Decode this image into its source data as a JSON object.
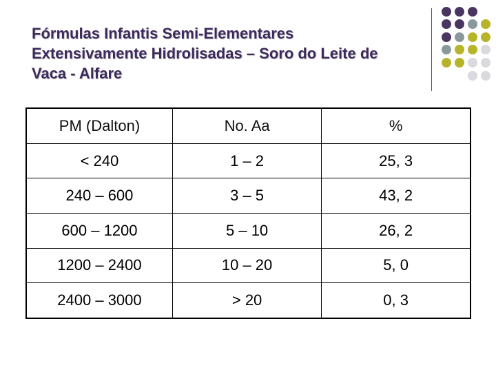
{
  "title": {
    "line1": "Fórmulas Infantis Semi-Elementares",
    "line2": "Extensivamente Hidrolisadas – Soro do Leite de",
    "line3": "Vaca - Alfare"
  },
  "table": {
    "headers": [
      "PM (Dalton)",
      "No. Aa",
      "%"
    ],
    "rows": [
      [
        "< 240",
        "1 – 2",
        "25, 3"
      ],
      [
        "240 – 600",
        "3 – 5",
        "43, 2"
      ],
      [
        "600 – 1200",
        "5 – 10",
        "26, 2"
      ],
      [
        "1200 – 2400",
        "10 – 20",
        "5, 0"
      ],
      [
        "2400 – 3000",
        "> 20",
        "0, 3"
      ]
    ]
  },
  "colors": {
    "purple": "#4a3561",
    "teal_gray": "#8a9a9c",
    "olive": "#b7b42a",
    "light_gray": "#d9d9de"
  }
}
